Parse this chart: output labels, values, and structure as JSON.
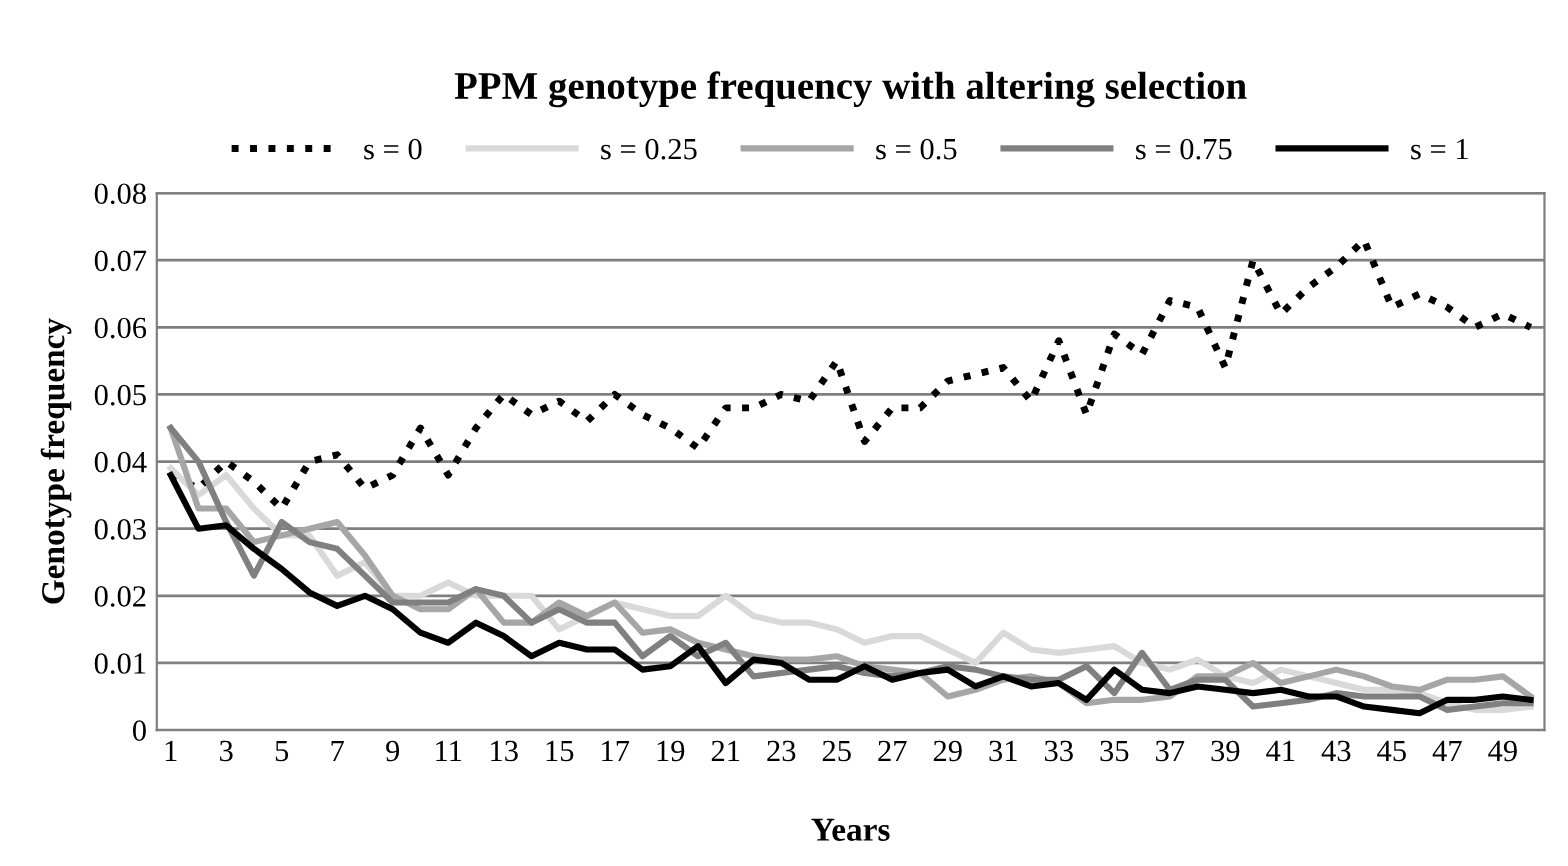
{
  "chart_data": {
    "type": "line",
    "title": "PPM genotype frequency with altering selection",
    "xlabel": "Years",
    "ylabel": "Genotype frequency",
    "categories": [
      "1",
      null,
      "3",
      null,
      "5",
      null,
      "7",
      null,
      "9",
      null,
      "11",
      null,
      "13",
      null,
      "15",
      null,
      "17",
      null,
      "19",
      null,
      "21",
      null,
      "23",
      null,
      "25",
      null,
      "27",
      null,
      "29",
      null,
      "31",
      null,
      "33",
      null,
      "35",
      null,
      "37",
      null,
      "39",
      null,
      "41",
      null,
      "43",
      null,
      "45",
      null,
      "47",
      null,
      "49",
      null
    ],
    "ylim": [
      0,
      0.08
    ],
    "yticks": [
      {
        "value": 0,
        "label": "0"
      },
      0.01,
      0.02,
      0.03,
      0.04,
      0.05,
      0.06,
      0.07,
      0.08
    ],
    "grid": "y",
    "legend": "top",
    "series": [
      {
        "name": "s = 0",
        "color": "#000000",
        "line_style": "dotted",
        "values": [
          0.038,
          0.036,
          0.04,
          0.037,
          0.033,
          0.04,
          0.041,
          0.036,
          0.038,
          0.045,
          0.038,
          0.045,
          0.05,
          0.047,
          0.049,
          0.046,
          0.05,
          0.047,
          0.045,
          0.042,
          0.048,
          0.048,
          0.05,
          0.049,
          0.055,
          0.043,
          0.048,
          0.048,
          0.052,
          0.053,
          0.054,
          0.049,
          0.058,
          0.047,
          0.059,
          0.056,
          0.064,
          0.063,
          0.054,
          0.07,
          0.062,
          0.066,
          0.069,
          0.073,
          0.063,
          0.065,
          0.063,
          0.06,
          0.062,
          0.06
        ]
      },
      {
        "name": "s = 0.25",
        "color": "#d9d9d9",
        "line_style": "solid",
        "values": [
          0.039,
          0.035,
          0.038,
          0.033,
          0.029,
          0.029,
          0.023,
          0.025,
          0.02,
          0.02,
          0.022,
          0.02,
          0.02,
          0.02,
          0.015,
          0.017,
          0.019,
          0.018,
          0.017,
          0.017,
          0.02,
          0.017,
          0.016,
          0.016,
          0.015,
          0.013,
          0.014,
          0.014,
          0.012,
          0.01,
          0.0145,
          0.012,
          0.0115,
          0.012,
          0.0125,
          0.01,
          0.009,
          0.0105,
          0.008,
          0.007,
          0.009,
          0.008,
          0.007,
          0.006,
          0.006,
          0.0055,
          0.004,
          0.003,
          0.003,
          0.0035
        ]
      },
      {
        "name": "s = 0.5",
        "color": "#a6a6a6",
        "line_style": "solid",
        "values": [
          0.045,
          0.033,
          0.033,
          0.028,
          0.029,
          0.03,
          0.031,
          0.026,
          0.02,
          0.018,
          0.018,
          0.021,
          0.016,
          0.016,
          0.019,
          0.017,
          0.019,
          0.0145,
          0.015,
          0.013,
          0.012,
          0.011,
          0.0105,
          0.0105,
          0.011,
          0.0095,
          0.009,
          0.0085,
          0.005,
          0.006,
          0.0075,
          0.008,
          0.007,
          0.004,
          0.0045,
          0.0045,
          0.005,
          0.008,
          0.008,
          0.01,
          0.007,
          0.008,
          0.009,
          0.008,
          0.0065,
          0.006,
          0.0075,
          0.0075,
          0.008,
          0.005
        ]
      },
      {
        "name": "s = 0.75",
        "color": "#808080",
        "line_style": "solid",
        "values": [
          0.045,
          0.04,
          0.031,
          0.023,
          0.031,
          0.028,
          0.027,
          0.023,
          0.019,
          0.019,
          0.019,
          0.021,
          0.02,
          0.016,
          0.018,
          0.016,
          0.016,
          0.011,
          0.014,
          0.011,
          0.013,
          0.008,
          0.0085,
          0.009,
          0.0095,
          0.0085,
          0.008,
          0.0085,
          0.0095,
          0.009,
          0.008,
          0.0075,
          0.0075,
          0.0095,
          0.0055,
          0.0115,
          0.006,
          0.0075,
          0.0075,
          0.0035,
          0.004,
          0.0045,
          0.0055,
          0.005,
          0.005,
          0.005,
          0.003,
          0.0035,
          0.004,
          0.004
        ]
      },
      {
        "name": "s = 1",
        "color": "#000000",
        "line_style": "solid",
        "values": [
          0.038,
          0.03,
          0.0305,
          0.027,
          0.024,
          0.0205,
          0.0185,
          0.02,
          0.018,
          0.0145,
          0.013,
          0.016,
          0.014,
          0.011,
          0.013,
          0.012,
          0.012,
          0.009,
          0.0095,
          0.0125,
          0.007,
          0.0105,
          0.01,
          0.0075,
          0.0075,
          0.0095,
          0.0075,
          0.0085,
          0.009,
          0.0065,
          0.008,
          0.0065,
          0.007,
          0.0045,
          0.009,
          0.006,
          0.0055,
          0.0065,
          0.006,
          0.0055,
          0.006,
          0.005,
          0.005,
          0.0035,
          0.003,
          0.0025,
          0.0045,
          0.0045,
          0.005,
          0.0045
        ]
      }
    ]
  }
}
